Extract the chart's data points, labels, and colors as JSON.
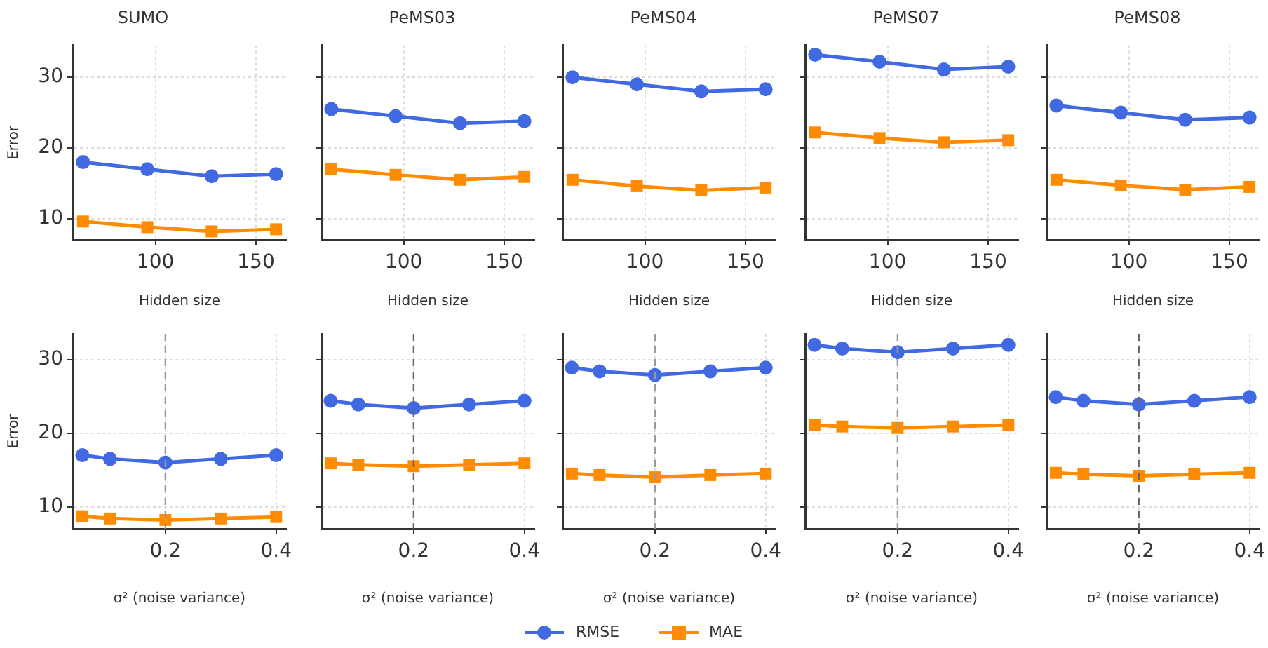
{
  "chart_data": [
    {
      "type": "line",
      "title": "SUMO",
      "xlabel": "Hidden size",
      "ylabel": "Error",
      "x": [
        64,
        96,
        128,
        160
      ],
      "xlim": [
        59,
        165
      ],
      "xticks": [
        100,
        150
      ],
      "ylim": [
        7,
        34.5
      ],
      "yticks": [
        10,
        20,
        30
      ],
      "grid": true,
      "legend": "bottom",
      "series": [
        {
          "name": "RMSE",
          "color": "#4169e1",
          "marker": "circle",
          "values": [
            18,
            17,
            16,
            16.3
          ]
        },
        {
          "name": "MAE",
          "color": "#ff8c00",
          "marker": "square",
          "values": [
            9.6,
            8.8,
            8.2,
            8.5
          ]
        }
      ]
    },
    {
      "type": "line",
      "title": "PeMS03",
      "xlabel": "Hidden size",
      "x": [
        64,
        96,
        128,
        160
      ],
      "xlim": [
        59,
        165
      ],
      "xticks": [
        100,
        150
      ],
      "ylim": [
        7,
        34.5
      ],
      "yticks": [
        10,
        20,
        30
      ],
      "grid": true,
      "tick_labels": "x",
      "series": [
        {
          "color": "#4169e1",
          "marker": "circle",
          "values": [
            25.5,
            24.5,
            23.5,
            23.8
          ]
        },
        {
          "color": "#ff8c00",
          "marker": "square",
          "values": [
            17,
            16.2,
            15.5,
            15.9
          ]
        }
      ]
    },
    {
      "type": "line",
      "title": "PeMS04",
      "xlabel": "Hidden size",
      "x": [
        64,
        96,
        128,
        160
      ],
      "xlim": [
        59,
        165
      ],
      "xticks": [
        100,
        150
      ],
      "ylim": [
        7,
        34.5
      ],
      "yticks": [
        10,
        20,
        30
      ],
      "grid": true,
      "tick_labels": "x",
      "series": [
        {
          "color": "#4169e1",
          "marker": "circle",
          "values": [
            30,
            29,
            28,
            28.3
          ]
        },
        {
          "color": "#ff8c00",
          "marker": "square",
          "values": [
            15.5,
            14.6,
            14,
            14.4
          ]
        }
      ]
    },
    {
      "type": "line",
      "title": "PeMS07",
      "xlabel": "Hidden size",
      "x": [
        64,
        96,
        128,
        160
      ],
      "xlim": [
        59,
        165
      ],
      "xticks": [
        100,
        150
      ],
      "ylim": [
        7,
        34.5
      ],
      "yticks": [
        10,
        20,
        30
      ],
      "grid": true,
      "tick_labels": "x",
      "series": [
        {
          "color": "#4169e1",
          "marker": "circle",
          "values": [
            33.2,
            32.2,
            31.1,
            31.5
          ]
        },
        {
          "color": "#ff8c00",
          "marker": "square",
          "values": [
            22.2,
            21.4,
            20.8,
            21.1
          ]
        }
      ]
    },
    {
      "type": "line",
      "title": "PeMS08",
      "xlabel": "Hidden size",
      "x": [
        64,
        96,
        128,
        160
      ],
      "xlim": [
        59,
        165
      ],
      "xticks": [
        100,
        150
      ],
      "ylim": [
        7,
        34.5
      ],
      "yticks": [
        10,
        20,
        30
      ],
      "grid": true,
      "tick_labels": "x",
      "series": [
        {
          "color": "#4169e1",
          "marker": "circle",
          "values": [
            26,
            25,
            24,
            24.3
          ]
        },
        {
          "color": "#ff8c00",
          "marker": "square",
          "values": [
            15.5,
            14.7,
            14.1,
            14.5
          ]
        }
      ]
    },
    {
      "type": "line",
      "xlabel": "σ² (noise variance)",
      "ylabel": "Error",
      "x": [
        0.05,
        0.1,
        0.2,
        0.3,
        0.4
      ],
      "xlim": [
        0.033,
        0.418
      ],
      "xticks": [
        0.2,
        0.4
      ],
      "ylim": [
        7,
        33.5
      ],
      "yticks": [
        10,
        20,
        30
      ],
      "grid": true,
      "ref_lines": [
        {
          "axis": "x",
          "value": 0.2,
          "color": "#999999",
          "line_style": "dashed"
        }
      ],
      "series": [
        {
          "color": "#4169e1",
          "marker": "circle",
          "values": [
            17,
            16.5,
            16,
            16.5,
            17
          ]
        },
        {
          "color": "#ff8c00",
          "marker": "square",
          "values": [
            8.7,
            8.4,
            8.2,
            8.4,
            8.6
          ]
        }
      ]
    },
    {
      "type": "line",
      "xlabel": "σ² (noise variance)",
      "x": [
        0.05,
        0.1,
        0.2,
        0.3,
        0.4
      ],
      "xlim": [
        0.033,
        0.418
      ],
      "xticks": [
        0.2,
        0.4
      ],
      "ylim": [
        7,
        33.5
      ],
      "yticks": [
        10,
        20,
        30
      ],
      "grid": true,
      "tick_labels": "x",
      "ref_lines": [
        {
          "axis": "x",
          "value": 0.2,
          "color": "#666666",
          "line_style": "dashed"
        }
      ],
      "series": [
        {
          "color": "#4169e1",
          "marker": "circle",
          "values": [
            24.4,
            23.9,
            23.4,
            23.9,
            24.4
          ]
        },
        {
          "color": "#ff8c00",
          "marker": "square",
          "values": [
            15.9,
            15.7,
            15.5,
            15.7,
            15.9
          ]
        }
      ]
    },
    {
      "type": "line",
      "xlabel": "σ² (noise variance)",
      "x": [
        0.05,
        0.1,
        0.2,
        0.3,
        0.4
      ],
      "xlim": [
        0.033,
        0.418
      ],
      "xticks": [
        0.2,
        0.4
      ],
      "ylim": [
        7,
        33.5
      ],
      "yticks": [
        10,
        20,
        30
      ],
      "grid": true,
      "tick_labels": "x",
      "ref_lines": [
        {
          "axis": "x",
          "value": 0.2,
          "color": "#999999",
          "line_style": "dashed"
        }
      ],
      "series": [
        {
          "color": "#4169e1",
          "marker": "circle",
          "values": [
            28.9,
            28.4,
            27.9,
            28.4,
            28.9
          ]
        },
        {
          "color": "#ff8c00",
          "marker": "square",
          "values": [
            14.5,
            14.3,
            14,
            14.3,
            14.5
          ]
        }
      ]
    },
    {
      "type": "line",
      "xlabel": "σ² (noise variance)",
      "x": [
        0.05,
        0.1,
        0.2,
        0.3,
        0.4
      ],
      "xlim": [
        0.033,
        0.418
      ],
      "xticks": [
        0.2,
        0.4
      ],
      "ylim": [
        7,
        33.5
      ],
      "yticks": [
        10,
        20,
        30
      ],
      "grid": true,
      "tick_labels": "x",
      "ref_lines": [
        {
          "axis": "x",
          "value": 0.2,
          "color": "#999999",
          "line_style": "dashed"
        }
      ],
      "series": [
        {
          "color": "#4169e1",
          "marker": "circle",
          "values": [
            32,
            31.5,
            31,
            31.5,
            32
          ]
        },
        {
          "color": "#ff8c00",
          "marker": "square",
          "values": [
            21.1,
            20.9,
            20.7,
            20.9,
            21.1
          ]
        }
      ]
    },
    {
      "type": "line",
      "xlabel": "σ² (noise variance)",
      "x": [
        0.05,
        0.1,
        0.2,
        0.3,
        0.4
      ],
      "xlim": [
        0.033,
        0.418
      ],
      "xticks": [
        0.2,
        0.4
      ],
      "ylim": [
        7,
        33.5
      ],
      "yticks": [
        10,
        20,
        30
      ],
      "grid": true,
      "tick_labels": "x",
      "ref_lines": [
        {
          "axis": "x",
          "value": 0.2,
          "color": "#666666",
          "line_style": "dashed"
        }
      ],
      "series": [
        {
          "color": "#4169e1",
          "marker": "circle",
          "values": [
            24.9,
            24.4,
            23.9,
            24.4,
            24.9
          ]
        },
        {
          "color": "#ff8c00",
          "marker": "square",
          "values": [
            14.6,
            14.4,
            14.2,
            14.4,
            14.6
          ]
        }
      ]
    }
  ]
}
